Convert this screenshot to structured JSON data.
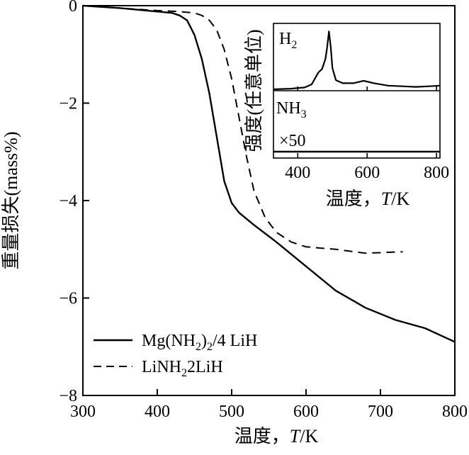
{
  "chart_data": [
    {
      "type": "line",
      "xlabel": "温度，",
      "xlabel_var": "T",
      "xlabel_unit": "/K",
      "ylabel": "重量损失(mass%)",
      "xlim": [
        300,
        800
      ],
      "ylim": [
        -8,
        0
      ],
      "x_ticks": [
        "300",
        "400",
        "500",
        "600",
        "700",
        "800"
      ],
      "y_ticks": [
        "0",
        "−2",
        "−4",
        "−6",
        "−8"
      ],
      "legend_position": "bottom-left",
      "grid": false,
      "series": [
        {
          "name": "Mg(NH2)2/4 LiH",
          "name_main": "Mg(NH",
          "name_sub1": "2",
          "name_mid": ")",
          "name_sub2": "2",
          "name_tail": "/4 LiH",
          "style": "solid",
          "x": [
            300,
            350,
            400,
            420,
            430,
            440,
            450,
            460,
            470,
            480,
            490,
            500,
            510,
            530,
            560,
            600,
            640,
            680,
            720,
            760,
            800
          ],
          "y": [
            0,
            -0.05,
            -0.12,
            -0.15,
            -0.2,
            -0.3,
            -0.6,
            -1.1,
            -1.8,
            -2.7,
            -3.6,
            -4.05,
            -4.25,
            -4.5,
            -4.85,
            -5.35,
            -5.85,
            -6.2,
            -6.45,
            -6.62,
            -6.9
          ]
        },
        {
          "name": "LiNH22LiH",
          "name_main": "LiNH",
          "name_sub1": "2",
          "name_tail": "2LiH",
          "style": "dashed",
          "x": [
            300,
            350,
            400,
            430,
            450,
            460,
            470,
            480,
            490,
            500,
            510,
            520,
            530,
            545,
            560,
            580,
            600,
            640,
            680,
            730
          ],
          "y": [
            0,
            -0.05,
            -0.1,
            -0.12,
            -0.15,
            -0.2,
            -0.3,
            -0.5,
            -0.9,
            -1.5,
            -2.3,
            -3.1,
            -3.8,
            -4.35,
            -4.65,
            -4.85,
            -4.95,
            -5.0,
            -5.08,
            -5.05
          ]
        }
      ]
    },
    {
      "type": "line",
      "xlabel": "温度，",
      "xlabel_var": "T",
      "xlabel_unit": "/K",
      "ylabel": "强度(任意单位)",
      "xlim": [
        330,
        810
      ],
      "x_ticks": [
        "400",
        "600",
        "800"
      ],
      "annotation_multiplier": "×50",
      "panels": [
        {
          "label_main": "H",
          "label_sub": "2",
          "x": [
            330,
            380,
            420,
            440,
            460,
            470,
            480,
            485,
            490,
            495,
            500,
            510,
            530,
            560,
            590,
            620,
            660,
            700,
            740,
            780,
            810
          ],
          "y": [
            0.0,
            0.01,
            0.03,
            0.08,
            0.28,
            0.33,
            0.5,
            0.7,
            0.95,
            0.7,
            0.35,
            0.15,
            0.1,
            0.1,
            0.14,
            0.1,
            0.06,
            0.05,
            0.04,
            0.05,
            0.06
          ]
        },
        {
          "label_main": "NH",
          "label_sub": "3",
          "x": [
            330,
            810
          ],
          "y": [
            0.0,
            0.0
          ]
        }
      ]
    }
  ]
}
